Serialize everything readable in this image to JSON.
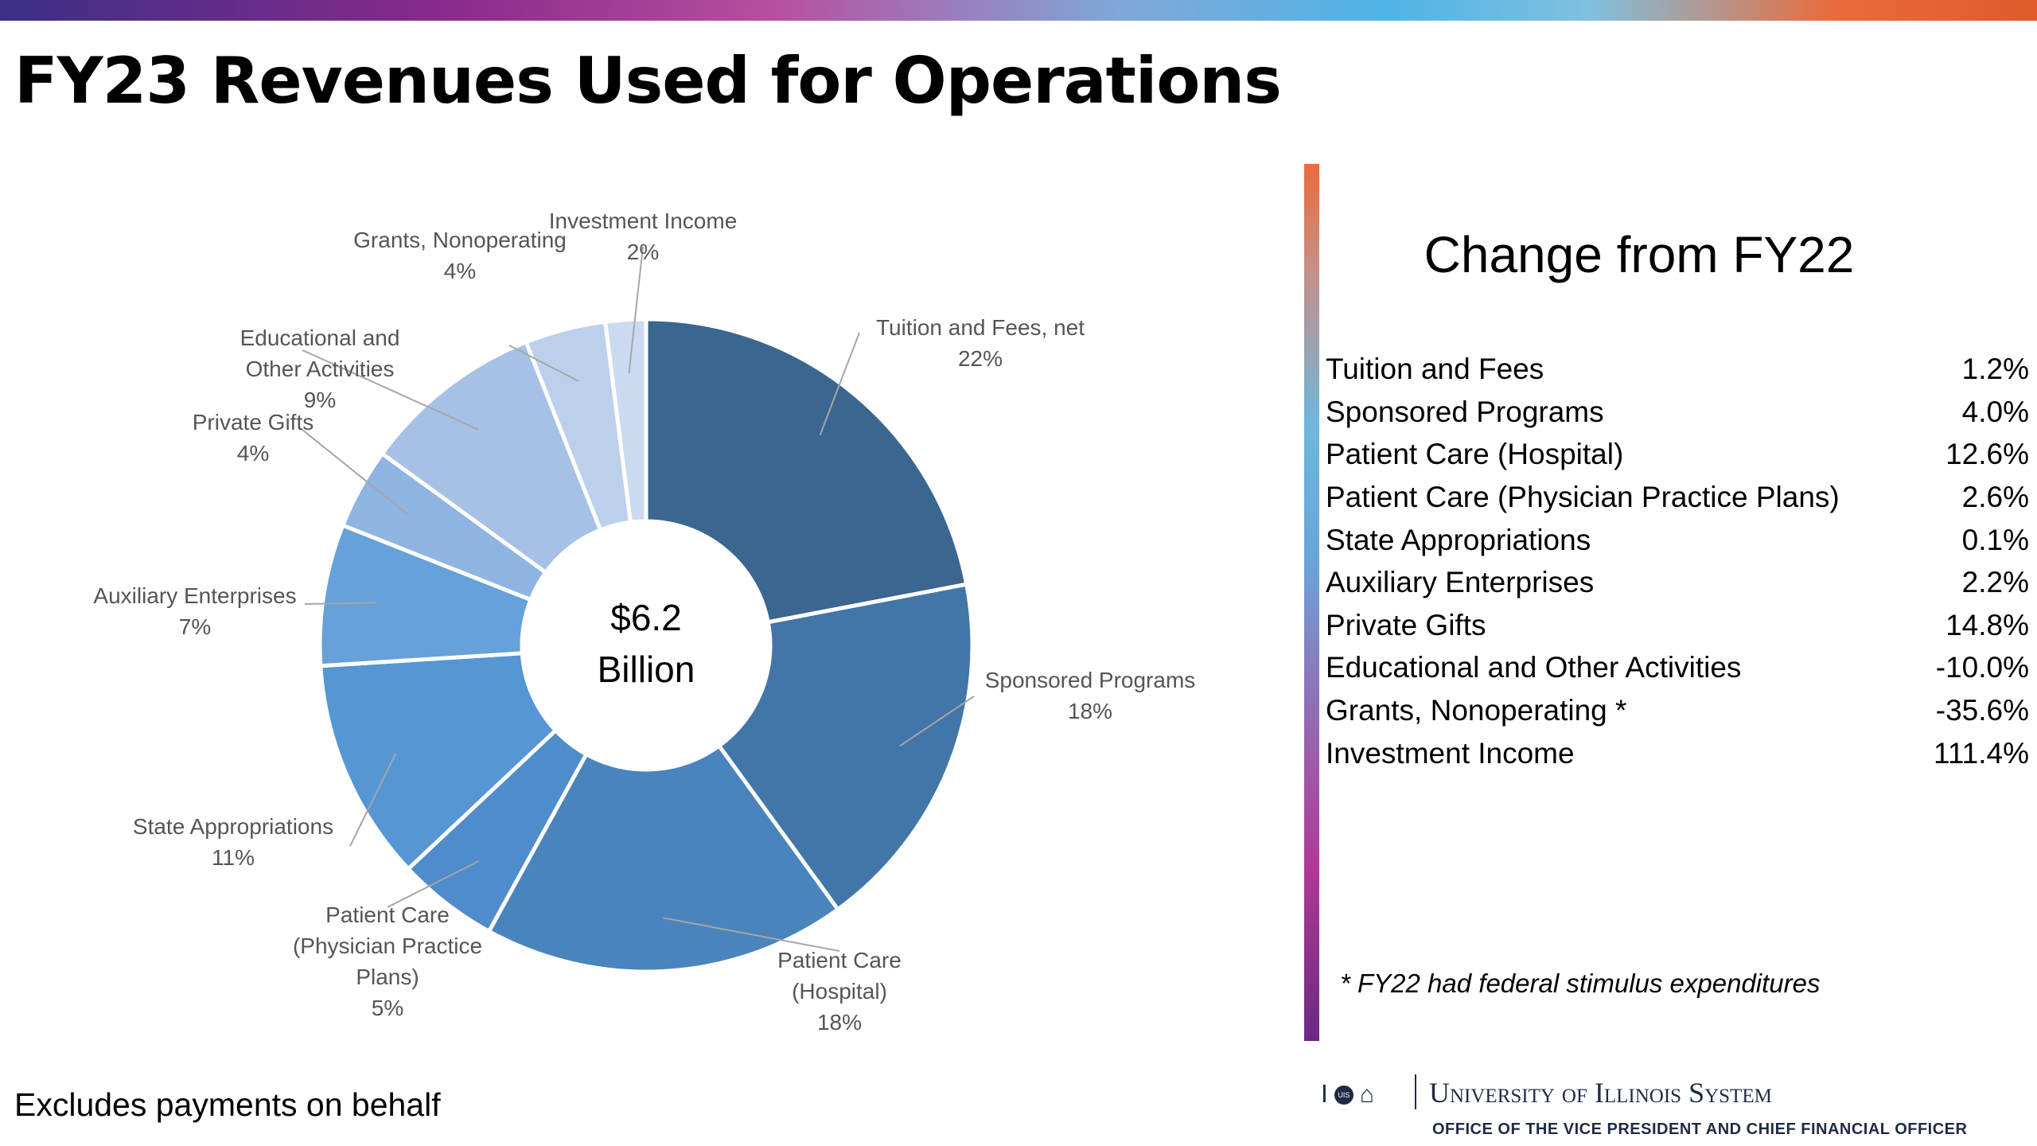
{
  "header": {
    "title": "FY23 Revenues Used for Operations",
    "footnote": "Excludes payments on behalf"
  },
  "chart_data": {
    "type": "pie",
    "variant": "donut",
    "center_text": [
      "$6.2",
      "Billion"
    ],
    "slices": [
      {
        "label": [
          "Tuition and Fees, net"
        ],
        "value_label": "22%",
        "value": 22,
        "color": "#3b668f"
      },
      {
        "label": [
          "Sponsored Programs"
        ],
        "value_label": "18%",
        "value": 18,
        "color": "#4376a8"
      },
      {
        "label": [
          "Patient Care",
          "(Hospital)"
        ],
        "value_label": "18%",
        "value": 18,
        "color": "#4a84bd"
      },
      {
        "label": [
          "Patient Care",
          "(Physician Practice",
          "Plans)"
        ],
        "value_label": "5%",
        "value": 5,
        "color": "#4f8ccb"
      },
      {
        "label": [
          "State Appropriations"
        ],
        "value_label": "11%",
        "value": 11,
        "color": "#5596d3"
      },
      {
        "label": [
          "Auxiliary Enterprises"
        ],
        "value_label": "7%",
        "value": 7,
        "color": "#66a1d9"
      },
      {
        "label": [
          "Private Gifts"
        ],
        "value_label": "4%",
        "value": 4,
        "color": "#8eb4e2"
      },
      {
        "label": [
          "Educational and",
          "Other Activities"
        ],
        "value_label": "9%",
        "value": 9,
        "color": "#a6c1e6"
      },
      {
        "label": [
          "Grants, Nonoperating"
        ],
        "value_label": "4%",
        "value": 4,
        "color": "#bcd0ec"
      },
      {
        "label": [
          "Investment Income"
        ],
        "value_label": "2%",
        "value": 2,
        "color": "#ccdaf1"
      }
    ]
  },
  "change_panel": {
    "title": "Change from FY22",
    "rows": [
      {
        "label": "Tuition and Fees",
        "value": "1.2%"
      },
      {
        "label": "Sponsored Programs",
        "value": "4.0%"
      },
      {
        "label": "Patient Care (Hospital)",
        "value": "12.6%"
      },
      {
        "label": "Patient Care (Physician Practice Plans)",
        "value": "2.6%"
      },
      {
        "label": "State Appropriations",
        "value": "0.1%"
      },
      {
        "label": "Auxiliary Enterprises",
        "value": "2.2%"
      },
      {
        "label": "Private Gifts",
        "value": "14.8%"
      },
      {
        "label": "Educational and Other Activities",
        "value": "-10.0%"
      },
      {
        "label": "Grants, Nonoperating *",
        "value": "-35.6%"
      },
      {
        "label": "Investment Income",
        "value": "111.4%"
      }
    ],
    "note": "* FY22 had federal stimulus expenditures"
  },
  "branding": {
    "name": "University of Illinois System",
    "office": "OFFICE OF THE VICE PRESIDENT AND CHIEF FINANCIAL OFFICER",
    "icons": [
      "block-i-icon",
      "uis-seal-icon",
      "capitol-dome-icon"
    ],
    "seal_text": "UIS"
  }
}
